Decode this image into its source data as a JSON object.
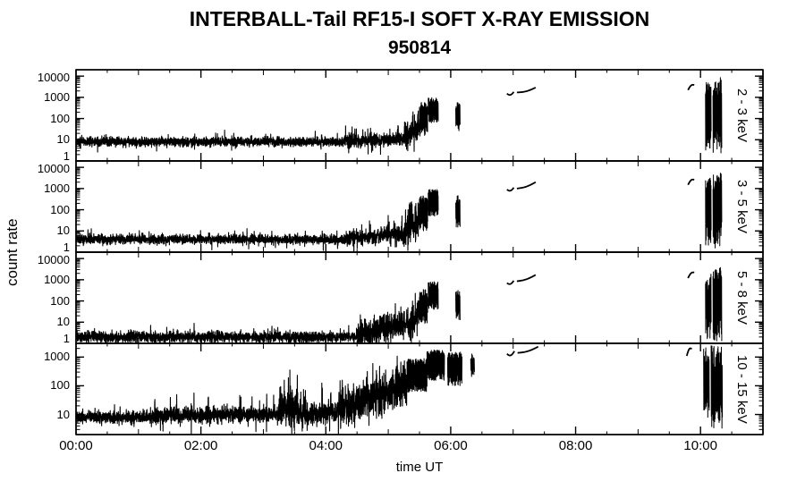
{
  "colors": {
    "line": "#000000",
    "background": "#ffffff",
    "text": "#000000"
  },
  "chart_data": {
    "type": "line",
    "title": "INTERBALL-Tail RF15-I SOFT X-RAY EMISSION",
    "subtitle": "950814",
    "xlabel": "time UT",
    "ylabel": "count rate",
    "x_range_hours": [
      0,
      11
    ],
    "x_ticks": [
      {
        "label": "00:00",
        "hour": 0
      },
      {
        "label": "02:00",
        "hour": 2
      },
      {
        "label": "04:00",
        "hour": 4
      },
      {
        "label": "06:00",
        "hour": 6
      },
      {
        "label": "08:00",
        "hour": 8
      },
      {
        "label": "10:00",
        "hour": 10
      }
    ],
    "grid": false,
    "legend": "none",
    "panels": [
      {
        "label": "2 - 3 keV",
        "ylim": [
          1,
          20000
        ],
        "y_ticks": [
          10000,
          1000,
          100,
          10,
          1
        ],
        "segments": [
          {
            "mode": "noise",
            "t0": 0.0,
            "t1": 4.3,
            "level0": 8,
            "level1": 8,
            "sig": 0.1,
            "n": 2500,
            "spike_p": 0.02,
            "spike_amp": 0.3
          },
          {
            "mode": "noise",
            "t0": 4.3,
            "t1": 5.25,
            "level0": 8,
            "level1": 11,
            "sig": 0.14,
            "n": 560,
            "spike_p": 0.05,
            "spike_amp": 0.45
          },
          {
            "mode": "noise",
            "t0": 5.25,
            "t1": 5.5,
            "level0": 12,
            "level1": 40,
            "sig": 0.25,
            "n": 150,
            "spike_p": 0.15,
            "spike_amp": 0.7
          },
          {
            "mode": "burst",
            "t0": 5.5,
            "t1": 5.63,
            "lo": 15,
            "hi": 600,
            "n": 60
          },
          {
            "mode": "burst",
            "t0": 5.64,
            "t1": 5.8,
            "lo": 60,
            "hi": 1000,
            "n": 80
          },
          {
            "mode": "burst",
            "t0": 6.08,
            "t1": 6.15,
            "lo": 25,
            "hi": 600,
            "n": 24
          },
          {
            "mode": "arc",
            "t0": 6.9,
            "t1": 7.01,
            "l0": 1500,
            "l1": 1800,
            "bump": -0.1
          },
          {
            "mode": "arc",
            "t0": 7.06,
            "t1": 7.36,
            "l0": 1700,
            "l1": 2900,
            "bump": -0.06
          },
          {
            "mode": "arc",
            "t0": 9.8,
            "t1": 9.9,
            "l0": 2200,
            "l1": 3800,
            "bump": 0.1
          },
          {
            "mode": "burst",
            "t0": 10.08,
            "t1": 10.17,
            "lo": 3,
            "hi": 5000,
            "n": 30
          },
          {
            "mode": "burst",
            "t0": 10.2,
            "t1": 10.34,
            "lo": 2,
            "hi": 9000,
            "n": 46
          }
        ]
      },
      {
        "label": "3 - 5 keV",
        "ylim": [
          1,
          20000
        ],
        "y_ticks": [
          10000,
          1000,
          100,
          10,
          1
        ],
        "segments": [
          {
            "mode": "noise",
            "t0": 0.0,
            "t1": 4.3,
            "level0": 4,
            "level1": 4,
            "sig": 0.1,
            "n": 2500,
            "spike_p": 0.02,
            "spike_amp": 0.3
          },
          {
            "mode": "noise",
            "t0": 4.3,
            "t1": 5.25,
            "level0": 4,
            "level1": 7,
            "sig": 0.16,
            "n": 560,
            "spike_p": 0.05,
            "spike_amp": 0.5
          },
          {
            "mode": "noise",
            "t0": 5.25,
            "t1": 5.5,
            "level0": 8,
            "level1": 30,
            "sig": 0.27,
            "n": 150,
            "spike_p": 0.15,
            "spike_amp": 0.7
          },
          {
            "mode": "burst",
            "t0": 5.5,
            "t1": 5.63,
            "lo": 10,
            "hi": 450,
            "n": 60
          },
          {
            "mode": "burst",
            "t0": 5.64,
            "t1": 5.8,
            "lo": 50,
            "hi": 900,
            "n": 80
          },
          {
            "mode": "burst",
            "t0": 6.08,
            "t1": 6.15,
            "lo": 15,
            "hi": 500,
            "n": 24
          },
          {
            "mode": "arc",
            "t0": 6.9,
            "t1": 7.01,
            "l0": 900,
            "l1": 1100,
            "bump": -0.1
          },
          {
            "mode": "arc",
            "t0": 7.06,
            "t1": 7.36,
            "l0": 1000,
            "l1": 2000,
            "bump": -0.06
          },
          {
            "mode": "arc",
            "t0": 9.8,
            "t1": 9.9,
            "l0": 1500,
            "l1": 2600,
            "bump": 0.1
          },
          {
            "mode": "burst",
            "t0": 10.08,
            "t1": 10.17,
            "lo": 2,
            "hi": 3500,
            "n": 30
          },
          {
            "mode": "burst",
            "t0": 10.2,
            "t1": 10.34,
            "lo": 1.5,
            "hi": 6000,
            "n": 46
          }
        ]
      },
      {
        "label": "5 - 8 keV",
        "ylim": [
          1,
          20000
        ],
        "y_ticks": [
          10000,
          1000,
          100,
          10,
          1
        ],
        "segments": [
          {
            "mode": "noise",
            "t0": 0.0,
            "t1": 4.5,
            "level0": 2,
            "level1": 2,
            "sig": 0.12,
            "n": 2600,
            "spike_p": 0.02,
            "spike_amp": 0.35
          },
          {
            "mode": "noise",
            "t0": 4.5,
            "t1": 5.35,
            "level0": 2.5,
            "level1": 8,
            "sig": 0.28,
            "n": 500,
            "spike_p": 0.08,
            "spike_amp": 0.55
          },
          {
            "mode": "noise",
            "t0": 5.35,
            "t1": 5.5,
            "level0": 8,
            "level1": 30,
            "sig": 0.3,
            "n": 90,
            "spike_p": 0.15,
            "spike_amp": 0.6
          },
          {
            "mode": "burst",
            "t0": 5.5,
            "t1": 5.63,
            "lo": 8,
            "hi": 350,
            "n": 60
          },
          {
            "mode": "burst",
            "t0": 5.64,
            "t1": 5.8,
            "lo": 40,
            "hi": 800,
            "n": 80
          },
          {
            "mode": "burst",
            "t0": 6.08,
            "t1": 6.15,
            "lo": 10,
            "hi": 400,
            "n": 24
          },
          {
            "mode": "arc",
            "t0": 6.9,
            "t1": 7.01,
            "l0": 700,
            "l1": 900,
            "bump": -0.1
          },
          {
            "mode": "arc",
            "t0": 7.06,
            "t1": 7.36,
            "l0": 850,
            "l1": 1700,
            "bump": -0.06
          },
          {
            "mode": "arc",
            "t0": 9.8,
            "t1": 9.9,
            "l0": 1200,
            "l1": 2200,
            "bump": 0.1
          },
          {
            "mode": "burst",
            "t0": 10.08,
            "t1": 10.17,
            "lo": 1.5,
            "hi": 2200,
            "n": 30
          },
          {
            "mode": "burst",
            "t0": 10.2,
            "t1": 10.34,
            "lo": 1.2,
            "hi": 4000,
            "n": 46
          }
        ]
      },
      {
        "label": "10 - 15 keV",
        "ylim": [
          2,
          3000
        ],
        "y_ticks": [
          1000,
          100,
          10
        ],
        "segments": [
          {
            "mode": "noise",
            "t0": 0.0,
            "t1": 1.2,
            "level0": 8,
            "level1": 8,
            "sig": 0.1,
            "n": 700,
            "spike_p": 0.015,
            "spike_amp": 0.3
          },
          {
            "mode": "noise",
            "t0": 1.2,
            "t1": 3.25,
            "level0": 9,
            "level1": 10,
            "sig": 0.13,
            "n": 1150,
            "spike_p": 0.035,
            "spike_amp": 0.5
          },
          {
            "mode": "noise",
            "t0": 3.25,
            "t1": 3.55,
            "level0": 15,
            "level1": 18,
            "sig": 0.3,
            "n": 190,
            "spike_p": 0.1,
            "spike_amp": 0.5
          },
          {
            "mode": "noise",
            "t0": 3.55,
            "t1": 4.2,
            "level0": 10,
            "level1": 12,
            "sig": 0.18,
            "n": 380,
            "spike_p": 0.04,
            "spike_amp": 0.5
          },
          {
            "mode": "noise",
            "t0": 4.2,
            "t1": 5.0,
            "level0": 15,
            "level1": 60,
            "sig": 0.33,
            "n": 480,
            "spike_p": 0.06,
            "spike_amp": 0.5
          },
          {
            "mode": "noise",
            "t0": 5.0,
            "t1": 5.3,
            "level0": 60,
            "level1": 150,
            "sig": 0.35,
            "n": 190
          },
          {
            "mode": "burst",
            "t0": 5.3,
            "t1": 5.62,
            "lo": 60,
            "hi": 900,
            "n": 130
          },
          {
            "mode": "burst",
            "t0": 5.62,
            "t1": 5.9,
            "lo": 150,
            "hi": 1800,
            "n": 115
          },
          {
            "mode": "burst",
            "t0": 5.95,
            "t1": 6.18,
            "lo": 100,
            "hi": 1500,
            "n": 95
          },
          {
            "mode": "burst",
            "t0": 6.32,
            "t1": 6.38,
            "lo": 200,
            "hi": 1300,
            "n": 14
          },
          {
            "mode": "arc",
            "t0": 6.9,
            "t1": 7.02,
            "l0": 1300,
            "l1": 1600,
            "bump": -0.1
          },
          {
            "mode": "arc",
            "t0": 7.07,
            "t1": 7.4,
            "l0": 1400,
            "l1": 2300,
            "bump": -0.05
          },
          {
            "mode": "arc",
            "t0": 9.78,
            "t1": 9.86,
            "l0": 1100,
            "l1": 1900,
            "bump": 0.12
          },
          {
            "mode": "burst",
            "t0": 10.05,
            "t1": 10.14,
            "lo": 5,
            "hi": 2200,
            "n": 32
          },
          {
            "mode": "burst",
            "t0": 10.17,
            "t1": 10.35,
            "lo": 3,
            "hi": 2600,
            "n": 56
          }
        ]
      }
    ]
  }
}
